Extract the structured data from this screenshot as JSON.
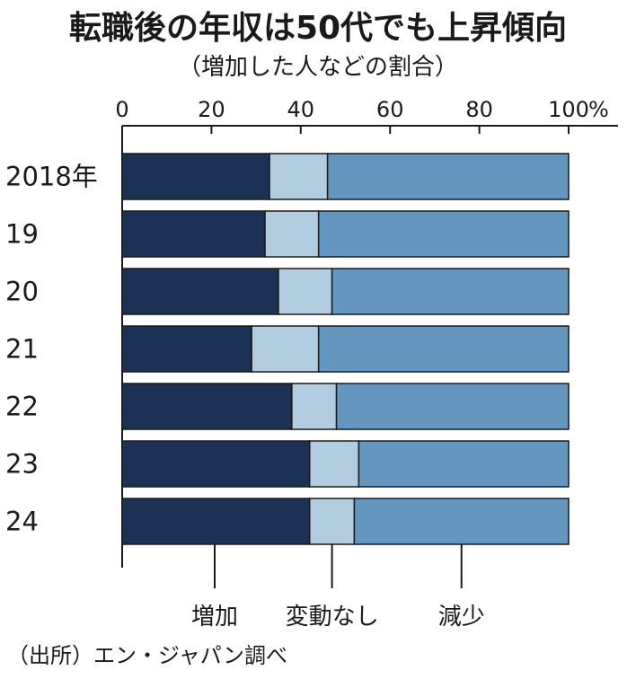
{
  "title": "転職後の年収は50代でも上昇傾向",
  "subtitle": "（増加した人などの割合）",
  "source": "（出所）エン・ジャパン調べ",
  "colors": {
    "increase": "#1b3254",
    "nochange": "#b3cde0",
    "decrease": "#6596bf",
    "border": "#1a1a1a"
  },
  "chart_data": {
    "type": "bar",
    "orientation": "horizontal",
    "stacked": true,
    "title": "転職後の年収は50代でも上昇傾向",
    "subtitle": "（増加した人などの割合）",
    "categories": [
      "2018年",
      "19",
      "20",
      "21",
      "22",
      "23",
      "24"
    ],
    "series": [
      {
        "name": "増加",
        "values": [
          33,
          32,
          35,
          29,
          38,
          42,
          42
        ]
      },
      {
        "name": "変動なし",
        "values": [
          13,
          12,
          12,
          15,
          10,
          11,
          10
        ]
      },
      {
        "name": "減少",
        "values": [
          54,
          56,
          53,
          56,
          52,
          47,
          48
        ]
      }
    ],
    "xlim": [
      0,
      100
    ],
    "xticks": [
      0,
      20,
      40,
      60,
      80,
      100
    ],
    "xtick_labels": [
      "0",
      "20",
      "40",
      "60",
      "80",
      "100"
    ],
    "x_unit": "%",
    "legend_position": "bottom"
  }
}
